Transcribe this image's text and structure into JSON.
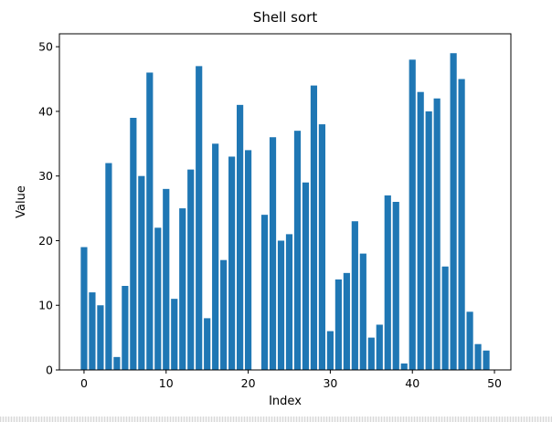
{
  "chart_data": {
    "type": "bar",
    "title": "Shell sort",
    "xlabel": "Index",
    "ylabel": "Value",
    "xlim": [
      -3,
      52
    ],
    "ylim": [
      0,
      52
    ],
    "xticks": [
      0,
      10,
      20,
      30,
      40,
      50
    ],
    "yticks": [
      0,
      10,
      20,
      30,
      40,
      50
    ],
    "grid": false,
    "bar_color": "#1f77b4",
    "categories": [
      0,
      1,
      2,
      3,
      4,
      5,
      6,
      7,
      8,
      9,
      10,
      11,
      12,
      13,
      14,
      15,
      16,
      17,
      18,
      19,
      20,
      21,
      22,
      23,
      24,
      25,
      26,
      27,
      28,
      29,
      30,
      31,
      32,
      33,
      34,
      35,
      36,
      37,
      38,
      39,
      40,
      41,
      42,
      43,
      44,
      45,
      46,
      47,
      48,
      49
    ],
    "values": [
      19,
      12,
      10,
      32,
      2,
      13,
      39,
      30,
      46,
      22,
      28,
      11,
      25,
      31,
      47,
      8,
      35,
      17,
      33,
      41,
      34,
      0,
      24,
      36,
      20,
      21,
      37,
      29,
      44,
      38,
      6,
      14,
      15,
      23,
      18,
      5,
      7,
      27,
      26,
      1,
      48,
      43,
      40,
      42,
      16,
      49,
      45,
      9,
      4,
      3
    ]
  }
}
